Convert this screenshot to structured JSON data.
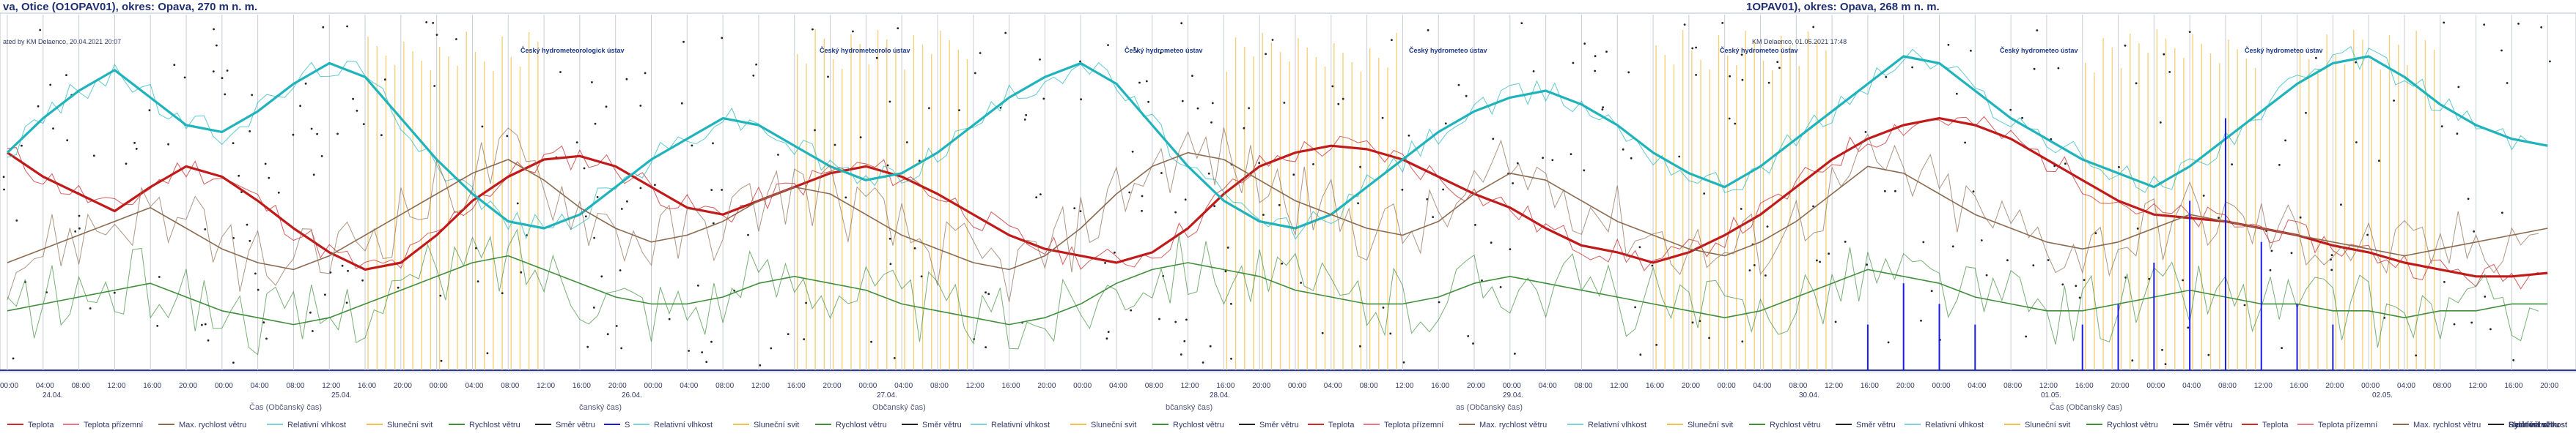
{
  "panels": [
    {
      "title": "va, Otice (O1OPAV01), okres: Opava, 270 m n. m.",
      "source": "ated by KM Delaenco, 20.04.2021 20:07"
    },
    {
      "title": "1OPAV01), okres: Opava, 268 m n. m.",
      "source": "KM Delaenco, 01.05.2021 17:48"
    }
  ],
  "station_markers": [
    {
      "label": "Český hydrometeorologick ústav"
    },
    {
      "label": "Český hydrometeorolo ústav"
    },
    {
      "label": "Český hydrometeo ústav"
    },
    {
      "label": "Český hydrometeo ústav"
    },
    {
      "label": "Český hydrometeo ústav"
    },
    {
      "label": "Český hydrometeo ústav"
    },
    {
      "label": "Český hydrometeo ústav"
    }
  ],
  "x_tick_labels": [
    "00:00",
    "04:00",
    "08:00",
    "12:00",
    "16:00",
    "20:00",
    "00:00",
    "04:00",
    "08:00",
    "12:00",
    "16:00",
    "20:00",
    "00:00",
    "04:00",
    "08:00",
    "12:00",
    "16:00",
    "20:00",
    "00:00",
    "04:00",
    "08:00",
    "12:00",
    "16:00",
    "20:00",
    "00:00",
    "04:00",
    "08:00",
    "12:00",
    "16:00",
    "20:00",
    "00:00",
    "04:00",
    "08:00",
    "12:00",
    "16:00",
    "20:00",
    "00:00",
    "04:00",
    "08:00",
    "12:00",
    "16:00",
    "20:00",
    "00:00",
    "04:00",
    "08:00",
    "12:00",
    "16:00",
    "20:00",
    "00:00",
    "04:00",
    "08:00",
    "12:00",
    "16:00",
    "20:00",
    "00:00",
    "04:00",
    "08:00",
    "12:00",
    "16:00",
    "20:00",
    "00:00",
    "04:00",
    "08:00",
    "12:00",
    "16:00",
    "20:00",
    "00:00",
    "04:00",
    "08:00",
    "12:00",
    "16:00",
    "20:00"
  ],
  "date_labels": [
    {
      "text": "24.04."
    },
    {
      "text": "25.04."
    },
    {
      "text": "26.04."
    },
    {
      "text": "27.04."
    },
    {
      "text": "28.04."
    },
    {
      "text": "29.04."
    },
    {
      "text": "30.04."
    },
    {
      "text": "01.05."
    },
    {
      "text": "02.05."
    }
  ],
  "axis_titles": [
    {
      "text": "Čas (Občanský čas)"
    },
    {
      "text": "čanský čas)"
    },
    {
      "text": "Občanský čas)"
    },
    {
      "text": "bčanský čas)"
    },
    {
      "text": "as (Občanský čas)"
    },
    {
      "text": "Čas (Občanský čas)"
    }
  ],
  "legend": [
    {
      "label": "Teplota",
      "color": "#d62728"
    },
    {
      "label": "Teplota přízemní",
      "color": "#e8778a"
    },
    {
      "label": "Max. rychlost větru",
      "color": "#8c6a4f"
    },
    {
      "label": "Relativní vlhkost",
      "color": "#7fd3dd"
    },
    {
      "label": "Sluneční svit",
      "color": "#f2c14e"
    },
    {
      "label": "Rychlost větru",
      "color": "#3f8f3a"
    },
    {
      "label": "Směr větru",
      "color": "#222222"
    },
    {
      "label": "S",
      "color": "#1a1ae6"
    },
    {
      "label": "Relativní vlhkost",
      "color": "#7fd3dd"
    },
    {
      "label": "Sluneční svit",
      "color": "#f2c14e"
    },
    {
      "label": "Rychlost větru",
      "color": "#3f8f3a"
    },
    {
      "label": "Směr větru",
      "color": "#222222"
    },
    {
      "label": "Relativní vlhkost",
      "color": "#7fd3dd"
    },
    {
      "label": "Sluneční svit",
      "color": "#f2c14e"
    },
    {
      "label": "Rychlost větru",
      "color": "#3f8f3a"
    },
    {
      "label": "Směr větru",
      "color": "#222222"
    },
    {
      "label": "Teplota",
      "color": "#d62728"
    },
    {
      "label": "Teplota přízemní",
      "color": "#e8778a"
    },
    {
      "label": "Max. rychlost větru",
      "color": "#8c6a4f"
    },
    {
      "label": "Relativní vlhkost",
      "color": "#7fd3dd"
    },
    {
      "label": "Sluneční svit",
      "color": "#f2c14e"
    },
    {
      "label": "Rychlost větru",
      "color": "#3f8f3a"
    },
    {
      "label": "Směr větru",
      "color": "#222222"
    },
    {
      "label": "Relativní vlhkost",
      "color": "#7fd3dd"
    },
    {
      "label": "Sluneční svit",
      "color": "#f2c14e"
    },
    {
      "label": "Rychlost větru",
      "color": "#3f8f3a"
    },
    {
      "label": "Směr větru",
      "color": "#222222"
    },
    {
      "label": "Teplota",
      "color": "#d62728"
    },
    {
      "label": "Teplota přízemní",
      "color": "#e8778a"
    },
    {
      "label": "Max. rychlost větru",
      "color": "#8c6a4f"
    },
    {
      "label": "Relativní vlhkost",
      "color": "#7fd3dd"
    },
    {
      "label": "Sluneční svit",
      "color": "#f2c14e"
    },
    {
      "label": "Rychlost větru",
      "color": "#3f8f3a"
    },
    {
      "label": "Směr větru",
      "color": "#222222"
    },
    {
      "label": "Relativní vlhkost",
      "color": "#7fd3dd"
    },
    {
      "label": "Sluneční svit",
      "color": "#f2c14e"
    },
    {
      "label": "Rychlost větru",
      "color": "#3f8f3a"
    },
    {
      "label": "Směr větru",
      "color": "#222222"
    }
  ],
  "chart_data": {
    "type": "line",
    "grid": true,
    "series": [
      {
        "name": "Teplota",
        "color": "#c01a1a",
        "values": [
          62,
          55,
          50,
          45,
          52,
          58,
          55,
          48,
          40,
          33,
          28,
          30,
          38,
          48,
          55,
          60,
          61,
          58,
          52,
          46,
          44,
          48,
          52,
          56,
          58,
          55,
          50,
          44,
          38,
          34,
          32,
          30,
          33,
          40,
          50,
          58,
          62,
          64,
          63,
          60,
          55,
          50,
          46,
          40,
          35,
          33,
          30,
          33,
          38,
          44,
          52,
          60,
          66,
          70,
          72,
          70,
          66,
          60,
          54,
          48,
          44,
          43,
          42,
          40,
          38,
          35,
          33,
          30,
          28,
          26,
          26,
          27
        ]
      },
      {
        "name": "Relativní vlhkost",
        "color": "#1fb3bb",
        "values": [
          62,
          72,
          80,
          86,
          78,
          70,
          68,
          74,
          82,
          88,
          84,
          72,
          60,
          50,
          42,
          40,
          44,
          52,
          60,
          66,
          72,
          70,
          64,
          58,
          54,
          56,
          62,
          70,
          78,
          84,
          88,
          82,
          70,
          58,
          48,
          42,
          40,
          44,
          52,
          60,
          68,
          74,
          78,
          80,
          76,
          70,
          62,
          56,
          52,
          58,
          66,
          74,
          82,
          90,
          88,
          80,
          72,
          66,
          60,
          56,
          52,
          58,
          66,
          74,
          82,
          88,
          90,
          84,
          76,
          70,
          66,
          64
        ]
      },
      {
        "name": "Max. rychlost větru",
        "color": "#8c6a4f",
        "values": [
          30,
          34,
          38,
          42,
          46,
          40,
          34,
          30,
          28,
          32,
          38,
          44,
          50,
          56,
          60,
          54,
          46,
          40,
          36,
          38,
          42,
          48,
          52,
          50,
          44,
          38,
          34,
          30,
          28,
          32,
          40,
          50,
          58,
          62,
          60,
          54,
          48,
          44,
          40,
          38,
          42,
          50,
          56,
          54,
          48,
          42,
          38,
          34,
          32,
          36,
          42,
          50,
          58,
          56,
          50,
          44,
          40,
          36,
          34,
          36,
          40,
          44,
          42,
          40,
          38,
          36,
          34,
          32,
          34,
          36,
          38,
          40
        ]
      },
      {
        "name": "Rychlost větru",
        "color": "#3f8f3a",
        "values": [
          16,
          18,
          20,
          22,
          24,
          20,
          16,
          14,
          12,
          14,
          18,
          22,
          26,
          30,
          32,
          28,
          24,
          20,
          18,
          18,
          20,
          24,
          26,
          24,
          22,
          18,
          16,
          14,
          12,
          14,
          18,
          24,
          28,
          30,
          28,
          26,
          22,
          20,
          18,
          18,
          20,
          24,
          26,
          24,
          22,
          20,
          18,
          16,
          14,
          16,
          20,
          24,
          28,
          26,
          24,
          20,
          18,
          16,
          16,
          18,
          20,
          22,
          20,
          18,
          18,
          16,
          16,
          14,
          16,
          16,
          18,
          18
        ]
      },
      {
        "name": "S",
        "color": "#1a1ae6",
        "values": [
          1,
          1,
          1,
          1,
          1,
          1,
          1,
          1,
          1,
          1,
          1,
          1,
          1,
          1,
          1,
          1,
          1,
          1,
          1,
          1,
          1,
          1,
          1,
          1,
          1,
          1,
          1,
          1,
          1,
          1,
          1,
          1,
          1,
          1,
          1,
          1,
          1,
          1,
          1,
          1,
          1,
          1,
          1,
          1,
          1,
          1,
          1,
          1,
          1,
          1,
          1,
          1,
          2,
          4,
          3,
          2,
          1,
          1,
          2,
          3,
          5,
          8,
          12,
          6,
          3,
          2,
          1,
          1,
          1,
          1,
          1,
          1
        ]
      }
    ],
    "sunshine_periods": [
      [
        10,
        15
      ],
      [
        22,
        27
      ],
      [
        34,
        39
      ],
      [
        46,
        51
      ],
      [
        58,
        63
      ],
      [
        64,
        68
      ]
    ]
  }
}
